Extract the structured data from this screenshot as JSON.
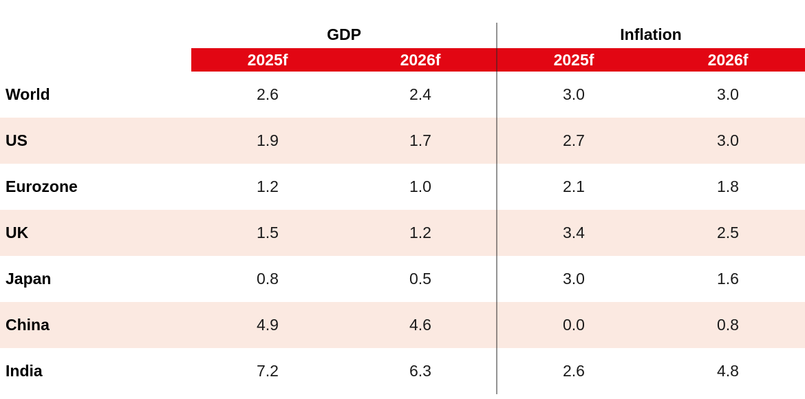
{
  "table": {
    "group_headers": {
      "gdp": "GDP",
      "inflation": "Inflation"
    },
    "year_headers": [
      "2025f",
      "2026f",
      "2025f",
      "2026f"
    ],
    "rows": [
      {
        "label": "World",
        "values": [
          "2.6",
          "2.4",
          "3.0",
          "3.0"
        ],
        "highlighted": false
      },
      {
        "label": "US",
        "values": [
          "1.9",
          "1.7",
          "2.7",
          "3.0"
        ],
        "highlighted": true
      },
      {
        "label": "Eurozone",
        "values": [
          "1.2",
          "1.0",
          "2.1",
          "1.8"
        ],
        "highlighted": false
      },
      {
        "label": "UK",
        "values": [
          "1.5",
          "1.2",
          "3.4",
          "2.5"
        ],
        "highlighted": true
      },
      {
        "label": "Japan",
        "values": [
          "0.8",
          "0.5",
          "3.0",
          "1.6"
        ],
        "highlighted": false
      },
      {
        "label": "China",
        "values": [
          "4.9",
          "4.6",
          "0.0",
          "0.8"
        ],
        "highlighted": true
      },
      {
        "label": "India",
        "values": [
          "7.2",
          "6.3",
          "2.6",
          "4.8"
        ],
        "highlighted": false
      }
    ],
    "colors": {
      "header_band_red": "#e20613",
      "row_highlight_pink": "#fbe9e1",
      "divider_gray": "#8c8c8c",
      "header_text_white": "#ffffff"
    }
  },
  "chart_data": {
    "type": "table",
    "title": "",
    "column_groups": [
      "GDP",
      "Inflation"
    ],
    "columns": [
      "GDP 2025f",
      "GDP 2026f",
      "Inflation 2025f",
      "Inflation 2026f"
    ],
    "row_labels": [
      "World",
      "US",
      "Eurozone",
      "UK",
      "Japan",
      "China",
      "India"
    ],
    "series": [
      {
        "name": "GDP 2025f",
        "values": [
          2.6,
          1.9,
          1.2,
          1.5,
          0.8,
          4.9,
          7.2
        ]
      },
      {
        "name": "GDP 2026f",
        "values": [
          2.4,
          1.7,
          1.0,
          1.2,
          0.5,
          4.6,
          6.3
        ]
      },
      {
        "name": "Inflation 2025f",
        "values": [
          3.0,
          2.7,
          2.1,
          3.4,
          3.0,
          0.0,
          2.6
        ]
      },
      {
        "name": "Inflation 2026f",
        "values": [
          3.0,
          3.0,
          1.8,
          2.5,
          1.6,
          0.8,
          4.8
        ]
      }
    ],
    "layout_hints": {
      "highlighted_rows": [
        "US",
        "UK",
        "China"
      ],
      "divider_between_groups": true,
      "header_band_color": "#e20613"
    }
  }
}
